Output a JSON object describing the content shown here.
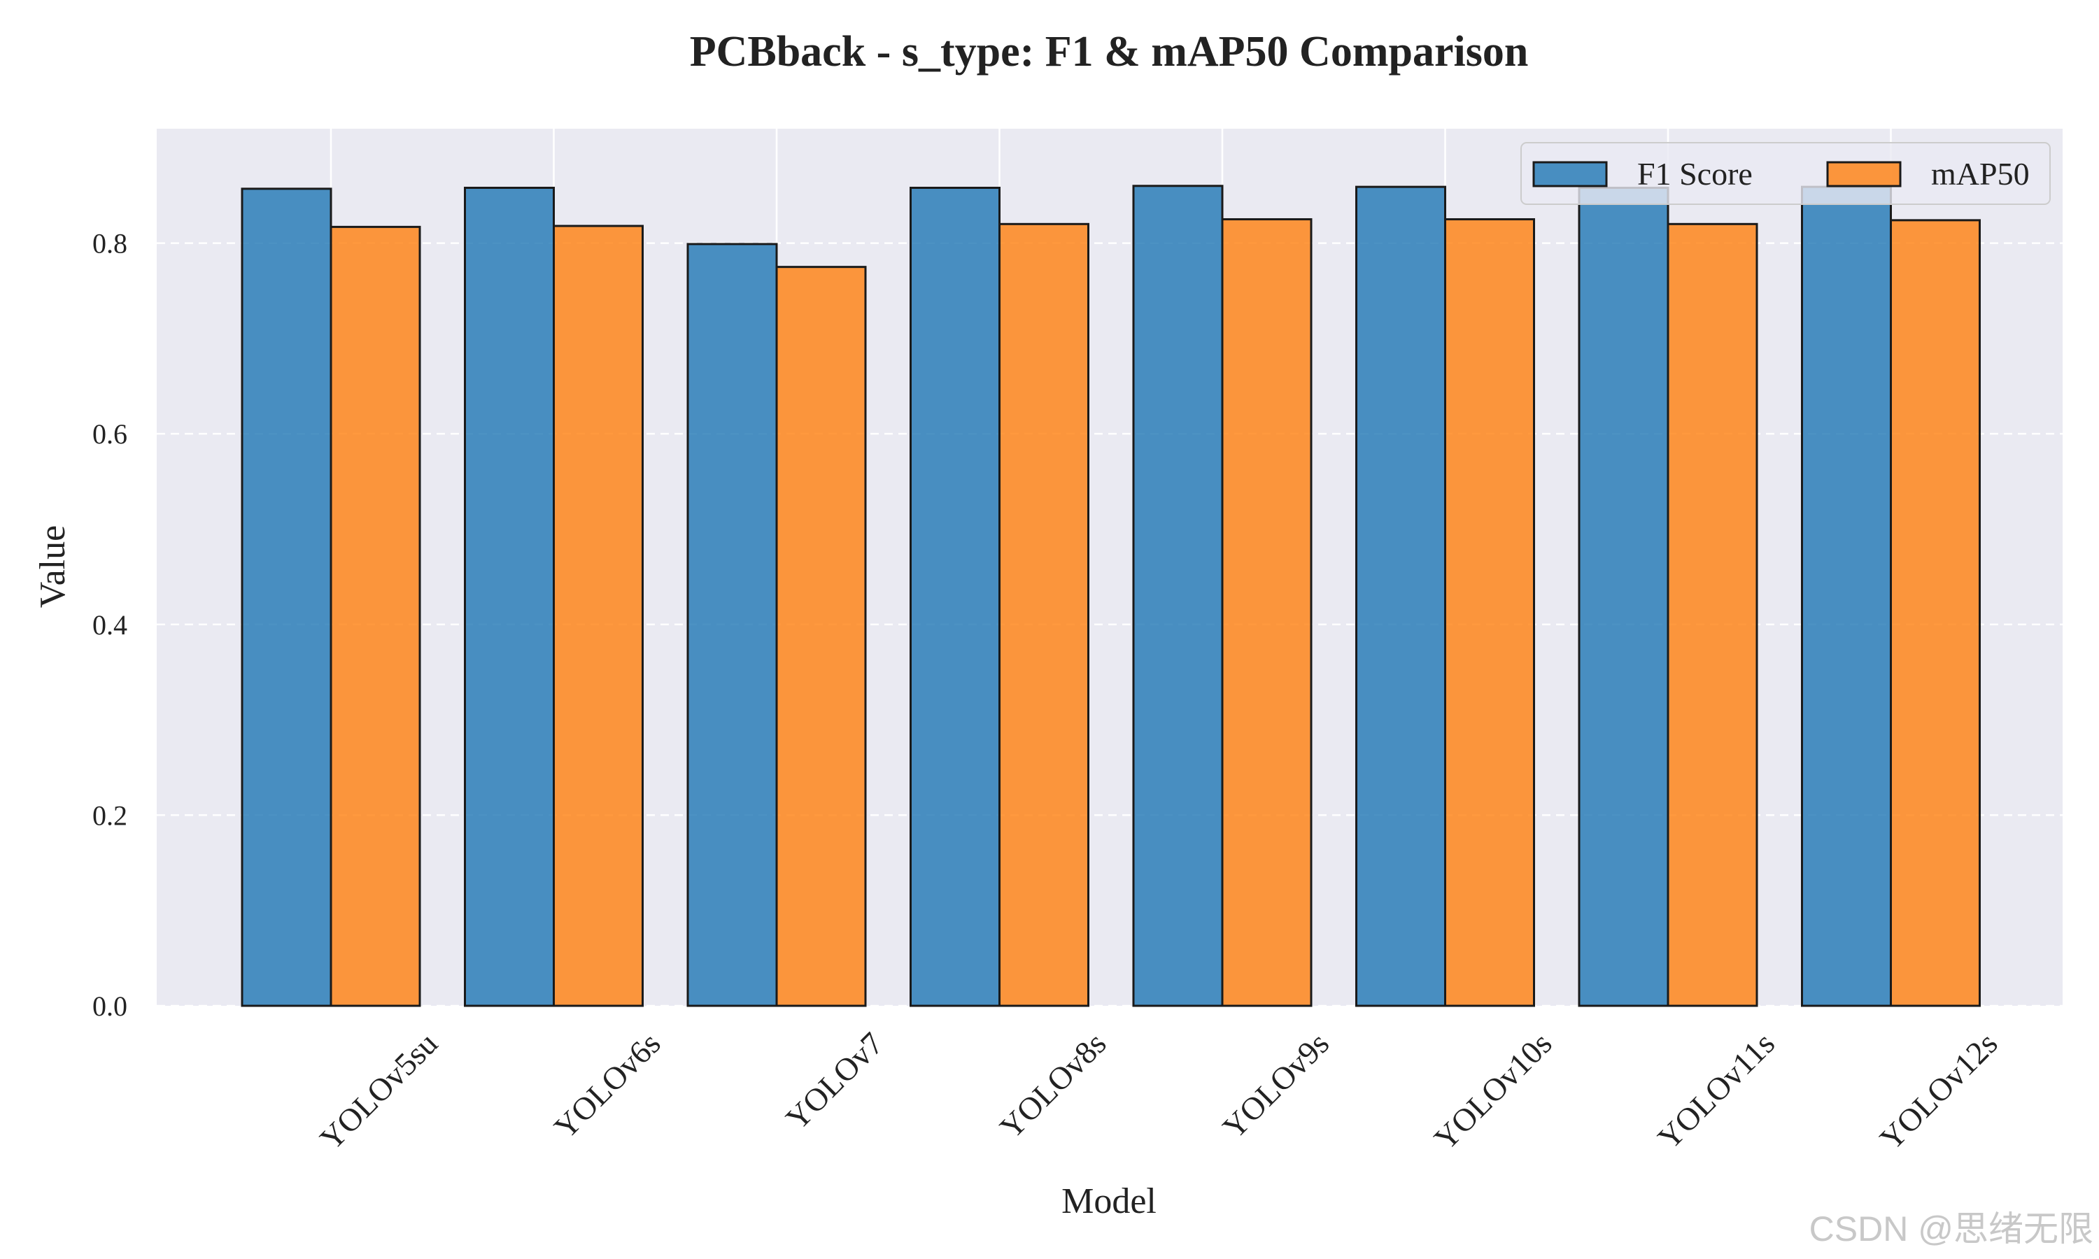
{
  "chart_data": {
    "type": "bar",
    "title": "PCBback - s_type: F1 & mAP50 Comparison",
    "xlabel": "Model",
    "ylabel": "Value",
    "categories": [
      "YOLOv5su",
      "YOLOv6s",
      "YOLOv7",
      "YOLOv8s",
      "YOLOv9s",
      "YOLOv10s",
      "YOLOv11s",
      "YOLOv12s"
    ],
    "series": [
      {
        "name": "F1 Score",
        "color": "#1f77b4",
        "values": [
          0.857,
          0.858,
          0.799,
          0.858,
          0.86,
          0.859,
          0.858,
          0.859
        ]
      },
      {
        "name": "mAP50",
        "color": "#ff7f0e",
        "values": [
          0.817,
          0.818,
          0.775,
          0.82,
          0.825,
          0.825,
          0.82,
          0.824
        ]
      }
    ],
    "ylim": [
      0,
      0.92
    ],
    "yticks": [
      0.0,
      0.2,
      0.4,
      0.6,
      0.8
    ],
    "ytick_labels": [
      "0.0",
      "0.2",
      "0.4",
      "0.6",
      "0.8"
    ],
    "grid": true,
    "legend_position": "upper-right",
    "background_color": "#eaeaf2",
    "watermark": "CSDN @思绪无限"
  }
}
